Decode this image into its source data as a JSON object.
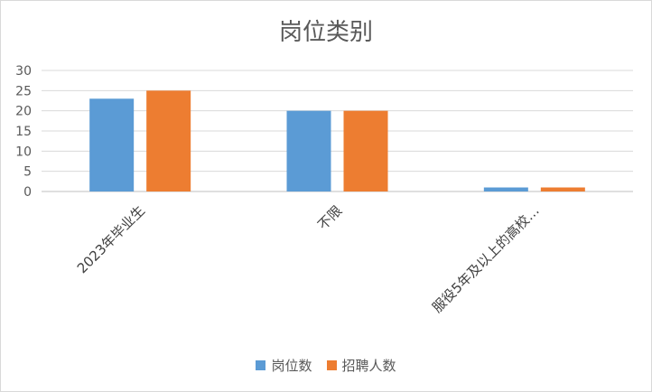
{
  "chart_data": {
    "type": "bar",
    "title": "岗位类别",
    "categories": [
      "2023年毕业生",
      "不限",
      "服役5年及以上的高校…"
    ],
    "series": [
      {
        "name": "岗位数",
        "values": [
          23,
          20,
          1
        ],
        "color": "#5b9bd5"
      },
      {
        "name": "招聘人数",
        "values": [
          25,
          20,
          1
        ],
        "color": "#ed7d31"
      }
    ],
    "ylim": [
      0,
      30
    ],
    "yticks": [
      0,
      5,
      10,
      15,
      20,
      25,
      30
    ],
    "grid": true,
    "legend_position": "bottom",
    "xlabel": "",
    "ylabel": ""
  }
}
